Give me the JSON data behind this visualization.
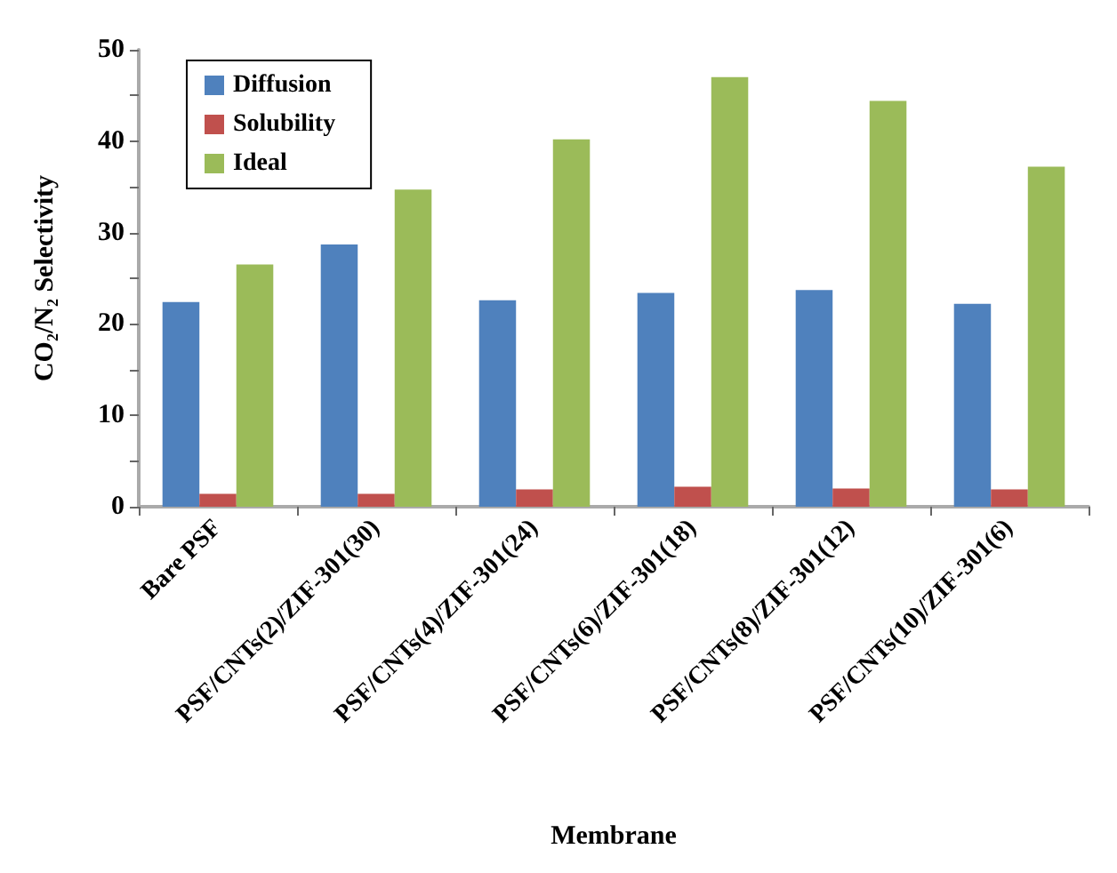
{
  "chart_data": {
    "type": "bar",
    "xlabel": "Membrane",
    "ylabel": "CO₂/N₂ Selectivity",
    "categories": [
      "Bare PSF",
      "PSF/CNTs(2)/ZIF-301(30)",
      "PSF/CNTs(4)/ZIF-301(24)",
      "PSF/CNTs(6)/ZIF-301(18)",
      "PSF/CNTs(8)/ZIF-301(12)",
      "PSF/CNTs(10)/ZIF-301(6)"
    ],
    "series": [
      {
        "name": "Diffusion",
        "color": "#4f81bd",
        "values": [
          22.4,
          28.7,
          22.6,
          23.4,
          23.7,
          22.2
        ]
      },
      {
        "name": "Solubility",
        "color": "#c0504d",
        "values": [
          1.4,
          1.4,
          1.9,
          2.2,
          2.0,
          1.9
        ]
      },
      {
        "name": "Ideal",
        "color": "#9bbb59",
        "values": [
          26.5,
          34.7,
          40.2,
          47.0,
          44.4,
          37.2
        ]
      }
    ],
    "ylim": [
      0,
      50
    ],
    "yticks": [
      0,
      {
        "value": 5,
        "label": null
      },
      10,
      {
        "value": 15,
        "label": null
      },
      20,
      {
        "value": 25,
        "label": null
      },
      30,
      {
        "value": 35,
        "label": null
      },
      40,
      {
        "value": 45,
        "label": null
      },
      50
    ],
    "grid": false,
    "legend": "top left"
  }
}
